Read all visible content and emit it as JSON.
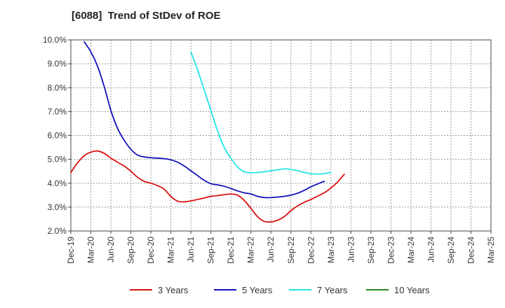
{
  "chart_data": {
    "type": "line",
    "title": "[6088]  Trend of StDev of ROE",
    "xlabel": "",
    "ylabel": "",
    "x_ticks": [
      "Dec-19",
      "Mar-20",
      "Jun-20",
      "Sep-20",
      "Dec-20",
      "Mar-21",
      "Jun-21",
      "Sep-21",
      "Dec-21",
      "Mar-22",
      "Jun-22",
      "Sep-22",
      "Dec-22",
      "Mar-23",
      "Jun-23",
      "Sep-23",
      "Dec-23",
      "Mar-24",
      "Jun-24",
      "Sep-24",
      "Dec-24",
      "Mar-25"
    ],
    "y_ticks": [
      "2.0%",
      "3.0%",
      "4.0%",
      "5.0%",
      "6.0%",
      "7.0%",
      "8.0%",
      "9.0%",
      "10.0%"
    ],
    "ylim": [
      2.0,
      10.0
    ],
    "grid": true,
    "legend_position": "bottom",
    "series": [
      {
        "name": "3 Years",
        "color": "#dd1111",
        "start_index": 0,
        "values": [
          4.45,
          4.85,
          5.15,
          5.3,
          5.35,
          5.25,
          5.05,
          4.88,
          4.72,
          4.5,
          4.25,
          4.08,
          4.0,
          3.9,
          3.75,
          3.45,
          3.25,
          3.22,
          3.26,
          3.32,
          3.38,
          3.45,
          3.48,
          3.52,
          3.55,
          3.5,
          3.28,
          2.95,
          2.6,
          2.4,
          2.38,
          2.45,
          2.6,
          2.85,
          3.05,
          3.2,
          3.32,
          3.46,
          3.6,
          3.8,
          4.05,
          4.38
        ]
      },
      {
        "name": "5 Years",
        "color": "#1111bb",
        "start_index": 2,
        "values": [
          9.92,
          9.5,
          8.9,
          8.05,
          7.05,
          6.3,
          5.8,
          5.42,
          5.18,
          5.1,
          5.07,
          5.05,
          5.03,
          4.98,
          4.88,
          4.72,
          4.52,
          4.32,
          4.12,
          3.98,
          3.93,
          3.87,
          3.78,
          3.68,
          3.6,
          3.55,
          3.45,
          3.4,
          3.4,
          3.42,
          3.45,
          3.5,
          3.58,
          3.7,
          3.85,
          3.97,
          4.08
        ]
      },
      {
        "name": "7 Years",
        "color": "#22e5e5",
        "start_index": 18,
        "values": [
          9.5,
          8.75,
          7.9,
          7.05,
          6.2,
          5.5,
          5.05,
          4.68,
          4.48,
          4.44,
          4.45,
          4.48,
          4.52,
          4.56,
          4.6,
          4.58,
          4.52,
          4.45,
          4.4,
          4.38,
          4.4,
          4.46
        ]
      },
      {
        "name": "10 Years",
        "color": "#228822",
        "start_index": 0,
        "values": []
      }
    ]
  }
}
